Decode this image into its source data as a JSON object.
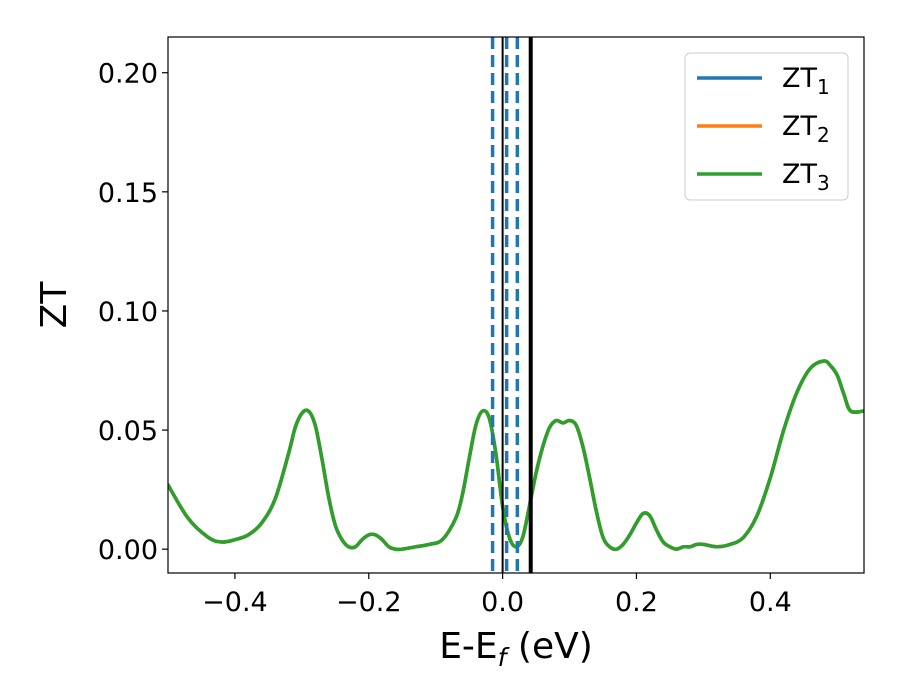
{
  "chart_data": {
    "type": "line",
    "title": "",
    "xlabel_main": "E-E",
    "xlabel_sub": "f",
    "xlabel_unit": " (eV)",
    "ylabel": "ZT",
    "xlim": [
      -0.5,
      0.54
    ],
    "ylim": [
      -0.01,
      0.215
    ],
    "xticks": [
      -0.4,
      -0.2,
      0.0,
      0.2,
      0.4
    ],
    "xtick_labels": [
      "−0.4",
      "−0.2",
      "0.0",
      "0.2",
      "0.4"
    ],
    "yticks": [
      0.0,
      0.05,
      0.1,
      0.15,
      0.2
    ],
    "ytick_labels": [
      "0.00",
      "0.05",
      "0.10",
      "0.15",
      "0.20"
    ],
    "grid": false,
    "legend_position": "top-right",
    "series": [
      {
        "name": "ZT",
        "sub": "1",
        "color": "#1f77b4"
      },
      {
        "name": "ZT",
        "sub": "2",
        "color": "#ff7f0e"
      },
      {
        "name": "ZT",
        "sub": "3",
        "color": "#2ca02c"
      }
    ],
    "curve": {
      "x": [
        -0.5,
        -0.47,
        -0.44,
        -0.42,
        -0.4,
        -0.38,
        -0.36,
        -0.34,
        -0.32,
        -0.31,
        -0.3,
        -0.29,
        -0.28,
        -0.27,
        -0.26,
        -0.25,
        -0.24,
        -0.23,
        -0.22,
        -0.21,
        -0.2,
        -0.19,
        -0.18,
        -0.17,
        -0.16,
        -0.15,
        -0.13,
        -0.11,
        -0.09,
        -0.07,
        -0.06,
        -0.05,
        -0.04,
        -0.03,
        -0.02,
        -0.01,
        0.0,
        0.01,
        0.02,
        0.03,
        0.04,
        0.05,
        0.06,
        0.07,
        0.08,
        0.09,
        0.1,
        0.11,
        0.12,
        0.13,
        0.14,
        0.15,
        0.16,
        0.17,
        0.18,
        0.19,
        0.2,
        0.21,
        0.22,
        0.23,
        0.24,
        0.25,
        0.26,
        0.27,
        0.28,
        0.29,
        0.3,
        0.32,
        0.34,
        0.36,
        0.38,
        0.4,
        0.42,
        0.44,
        0.46,
        0.48,
        0.49,
        0.5,
        0.51,
        0.52,
        0.54
      ],
      "y": [
        0.027,
        0.013,
        0.005,
        0.003,
        0.004,
        0.006,
        0.011,
        0.021,
        0.04,
        0.051,
        0.057,
        0.058,
        0.052,
        0.038,
        0.022,
        0.01,
        0.004,
        0.001,
        0.001,
        0.004,
        0.006,
        0.006,
        0.004,
        0.001,
        0.0,
        0.0,
        0.001,
        0.002,
        0.004,
        0.013,
        0.023,
        0.038,
        0.052,
        0.058,
        0.055,
        0.04,
        0.018,
        0.005,
        0.001,
        0.005,
        0.018,
        0.032,
        0.043,
        0.051,
        0.054,
        0.053,
        0.054,
        0.052,
        0.043,
        0.03,
        0.016,
        0.005,
        0.001,
        0.0,
        0.002,
        0.006,
        0.011,
        0.015,
        0.014,
        0.008,
        0.003,
        0.001,
        0.0,
        0.001,
        0.001,
        0.002,
        0.002,
        0.001,
        0.002,
        0.005,
        0.014,
        0.03,
        0.05,
        0.066,
        0.076,
        0.079,
        0.077,
        0.073,
        0.065,
        0.058,
        0.058
      ]
    },
    "vlines_dashed": {
      "x": [
        -0.015,
        0.006,
        0.022
      ],
      "color": "#1f77b4"
    },
    "vlines_solid": {
      "x": [
        0.0,
        0.042
      ],
      "color": "#000000"
    }
  }
}
